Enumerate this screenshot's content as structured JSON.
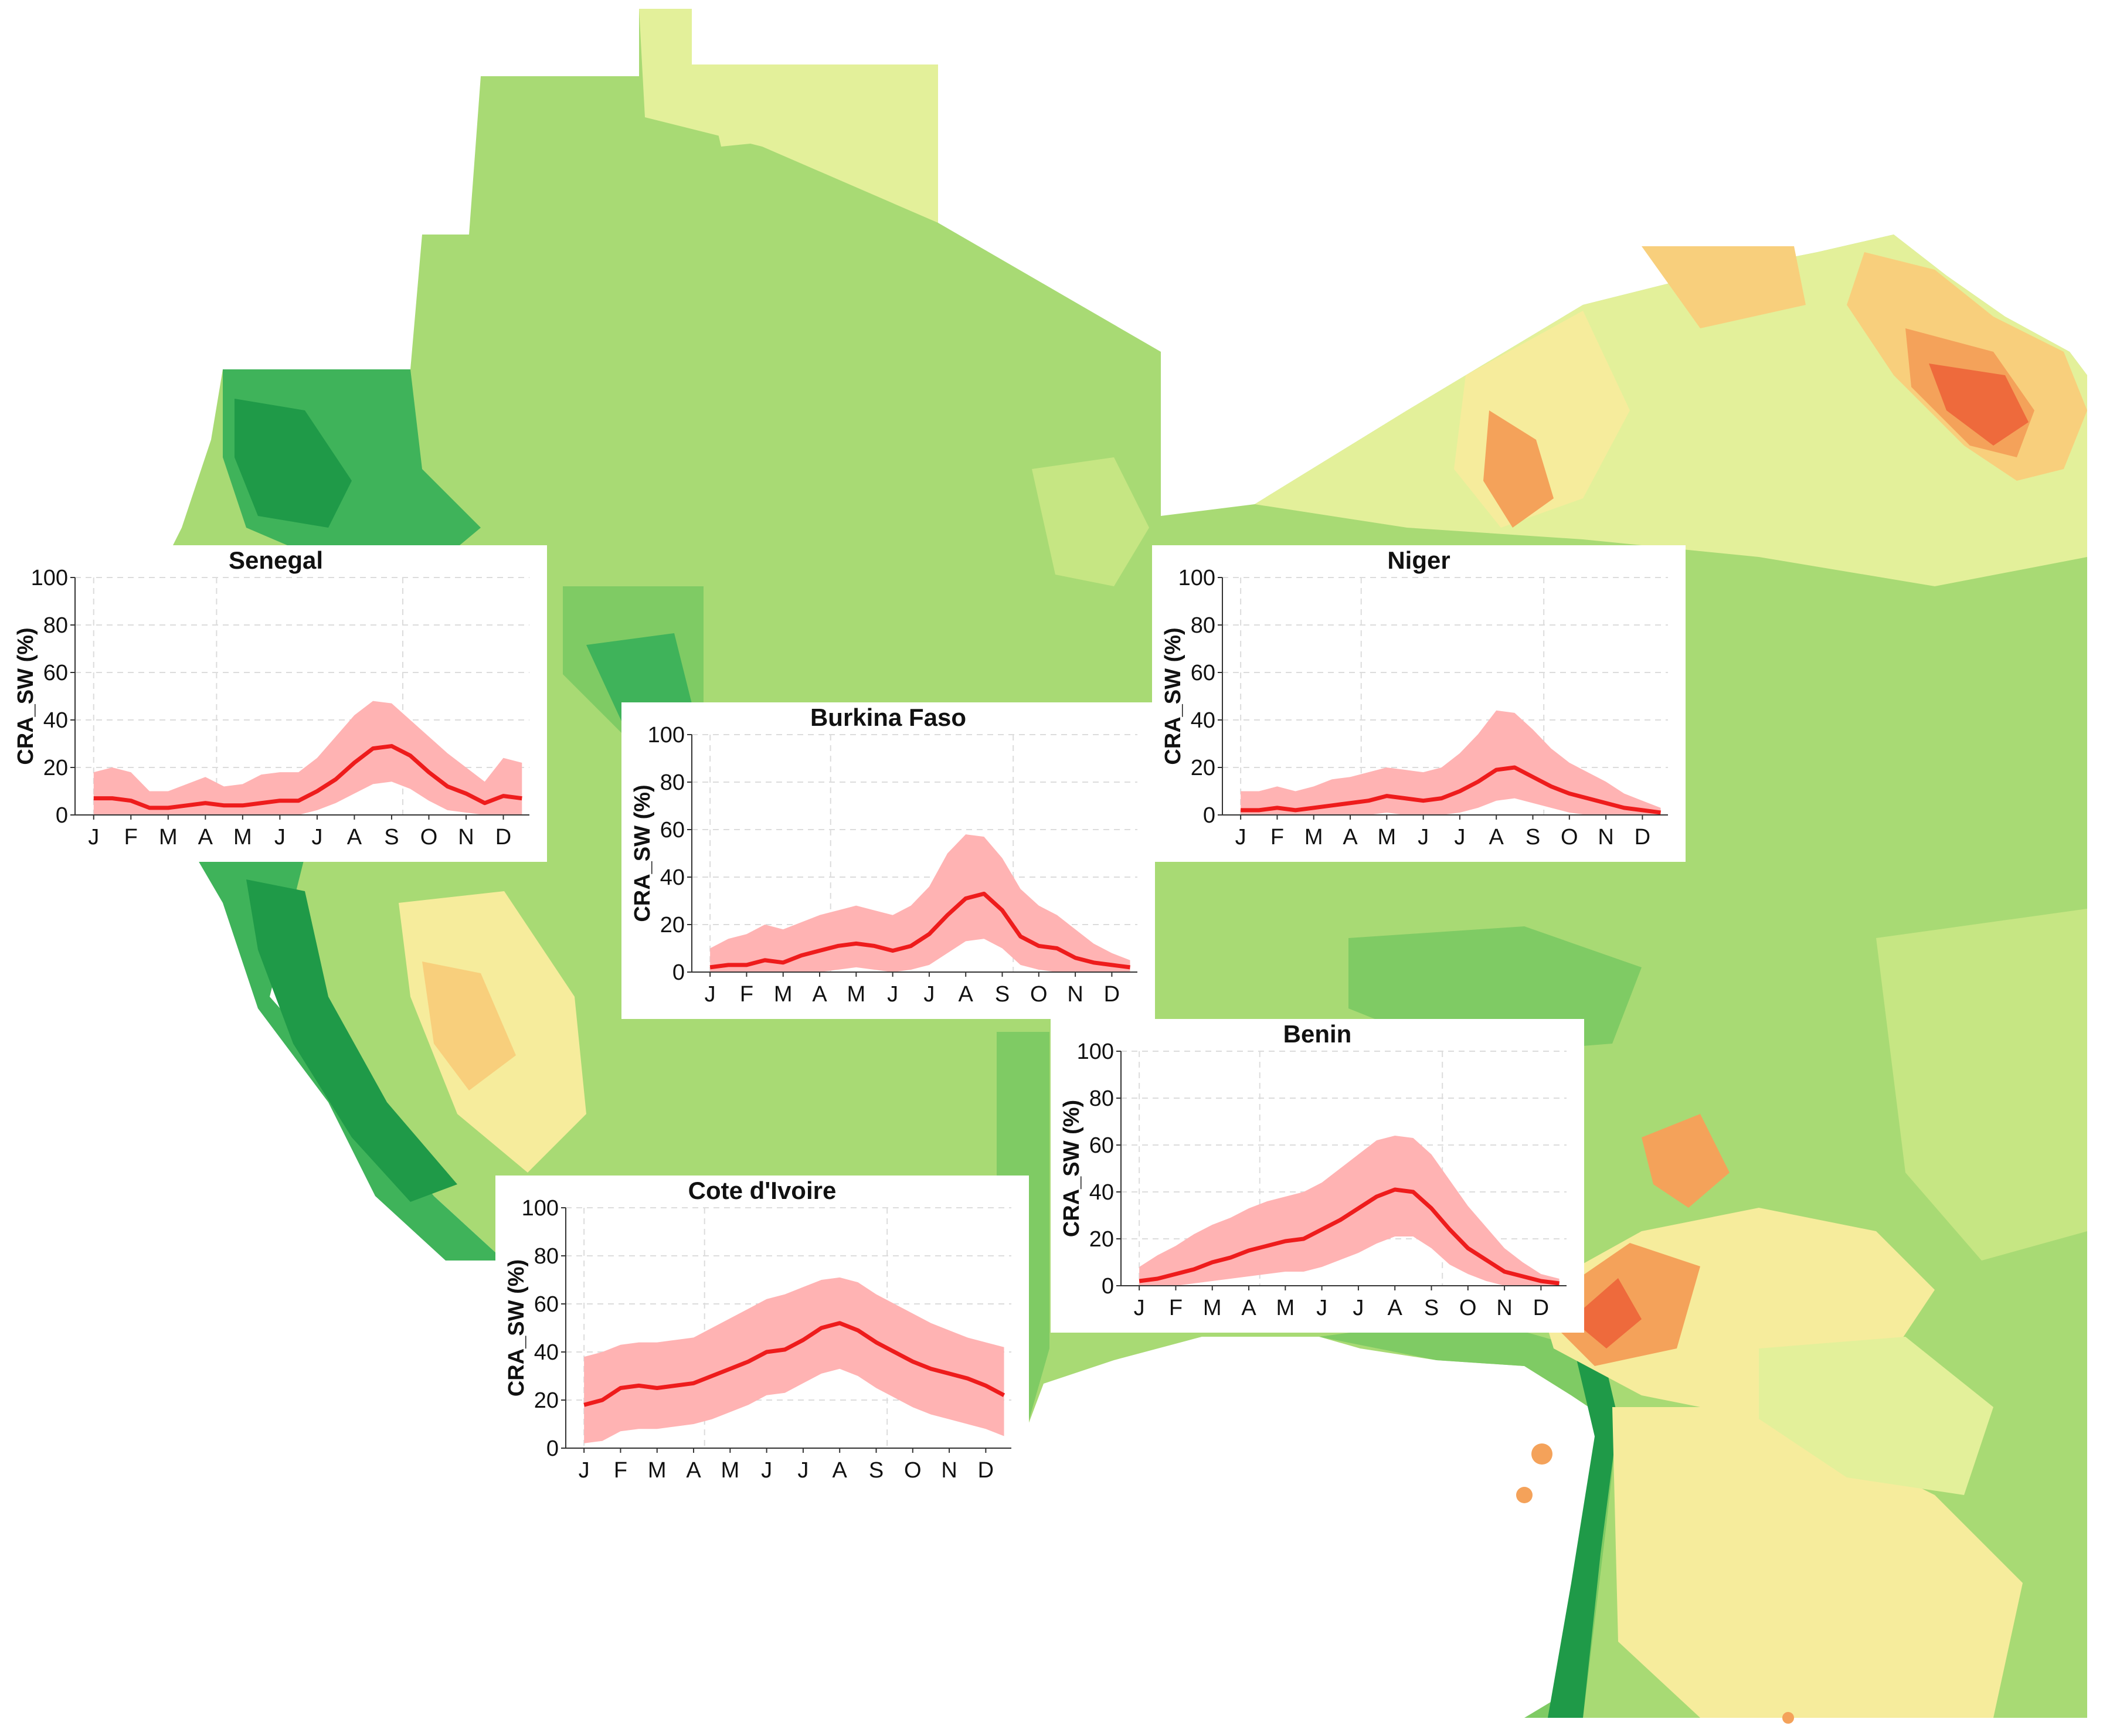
{
  "figure": {
    "map_palette": [
      "#1f9a48",
      "#3fb35a",
      "#7fcb64",
      "#a8da74",
      "#c6e683",
      "#e3f09a",
      "#f6ec9c",
      "#f8cf7c",
      "#f4a25a",
      "#ee6a3c",
      "#e5322a"
    ]
  },
  "chart_data": [
    {
      "type": "area",
      "title": "Senegal",
      "ylabel": "CRA_SW (%)",
      "ylim": [
        0,
        100
      ],
      "yticks": [
        0,
        20,
        40,
        60,
        80,
        100
      ],
      "month_labels": [
        "J",
        "F",
        "M",
        "A",
        "M",
        "J",
        "J",
        "A",
        "S",
        "O",
        "N",
        "D"
      ],
      "mean_color": "#ee1c1c",
      "band_color": "#ffb3b3",
      "x": [
        0,
        0.5,
        1,
        1.5,
        2,
        2.5,
        3,
        3.5,
        4,
        4.5,
        5,
        5.5,
        6,
        6.5,
        7,
        7.5,
        8,
        8.5,
        9,
        9.5,
        10,
        10.5,
        11,
        11.5
      ],
      "mean": [
        7,
        7,
        6,
        3,
        3,
        4,
        5,
        4,
        4,
        5,
        6,
        6,
        10,
        15,
        22,
        28,
        29,
        25,
        18,
        12,
        9,
        5,
        8,
        7
      ],
      "upper": [
        18,
        20,
        18,
        10,
        10,
        13,
        16,
        12,
        13,
        17,
        18,
        18,
        24,
        33,
        42,
        48,
        47,
        40,
        33,
        26,
        20,
        14,
        24,
        22
      ],
      "lower": [
        0,
        0,
        0,
        0,
        0,
        0,
        0,
        0,
        0,
        0,
        0,
        0,
        2,
        5,
        9,
        13,
        14,
        11,
        6,
        2,
        1,
        0,
        0,
        0
      ]
    },
    {
      "type": "area",
      "title": "Niger",
      "ylabel": "CRA_SW (%)",
      "ylim": [
        0,
        100
      ],
      "yticks": [
        0,
        20,
        40,
        60,
        80,
        100
      ],
      "month_labels": [
        "J",
        "F",
        "M",
        "A",
        "M",
        "J",
        "J",
        "A",
        "S",
        "O",
        "N",
        "D"
      ],
      "mean_color": "#ee1c1c",
      "band_color": "#ffb3b3",
      "x": [
        0,
        0.5,
        1,
        1.5,
        2,
        2.5,
        3,
        3.5,
        4,
        4.5,
        5,
        5.5,
        6,
        6.5,
        7,
        7.5,
        8,
        8.5,
        9,
        9.5,
        10,
        10.5,
        11,
        11.5
      ],
      "mean": [
        2,
        2,
        3,
        2,
        3,
        4,
        5,
        6,
        8,
        7,
        6,
        7,
        10,
        14,
        19,
        20,
        16,
        12,
        9,
        7,
        5,
        3,
        2,
        1
      ],
      "upper": [
        10,
        10,
        12,
        10,
        12,
        15,
        16,
        18,
        20,
        19,
        18,
        20,
        26,
        34,
        44,
        43,
        36,
        28,
        22,
        18,
        14,
        9,
        6,
        3
      ],
      "lower": [
        0,
        0,
        0,
        0,
        0,
        0,
        0,
        0,
        1,
        0,
        0,
        0,
        1,
        3,
        6,
        7,
        5,
        3,
        1,
        0,
        0,
        0,
        0,
        0
      ]
    },
    {
      "type": "area",
      "title": "Burkina Faso",
      "ylabel": "CRA_SW (%)",
      "ylim": [
        0,
        100
      ],
      "yticks": [
        0,
        20,
        40,
        60,
        80,
        100
      ],
      "month_labels": [
        "J",
        "F",
        "M",
        "A",
        "M",
        "J",
        "J",
        "A",
        "S",
        "O",
        "N",
        "D"
      ],
      "mean_color": "#ee1c1c",
      "band_color": "#ffb3b3",
      "x": [
        0,
        0.5,
        1,
        1.5,
        2,
        2.5,
        3,
        3.5,
        4,
        4.5,
        5,
        5.5,
        6,
        6.5,
        7,
        7.5,
        8,
        8.5,
        9,
        9.5,
        10,
        10.5,
        11,
        11.5
      ],
      "mean": [
        2,
        3,
        3,
        5,
        4,
        7,
        9,
        11,
        12,
        11,
        9,
        11,
        16,
        24,
        31,
        33,
        26,
        15,
        11,
        10,
        6,
        4,
        3,
        2
      ],
      "upper": [
        10,
        14,
        16,
        20,
        18,
        21,
        24,
        26,
        28,
        26,
        24,
        28,
        36,
        50,
        58,
        57,
        48,
        35,
        28,
        24,
        18,
        12,
        8,
        5
      ],
      "lower": [
        0,
        0,
        0,
        0,
        0,
        0,
        0,
        1,
        2,
        1,
        0,
        1,
        3,
        8,
        13,
        14,
        10,
        3,
        1,
        0,
        0,
        0,
        0,
        0
      ]
    },
    {
      "type": "area",
      "title": "Benin",
      "ylabel": "CRA_SW (%)",
      "ylim": [
        0,
        100
      ],
      "yticks": [
        0,
        20,
        40,
        60,
        80,
        100
      ],
      "month_labels": [
        "J",
        "F",
        "M",
        "A",
        "M",
        "J",
        "J",
        "A",
        "S",
        "O",
        "N",
        "D"
      ],
      "mean_color": "#ee1c1c",
      "band_color": "#ffb3b3",
      "x": [
        0,
        0.5,
        1,
        1.5,
        2,
        2.5,
        3,
        3.5,
        4,
        4.5,
        5,
        5.5,
        6,
        6.5,
        7,
        7.5,
        8,
        8.5,
        9,
        9.5,
        10,
        10.5,
        11,
        11.5
      ],
      "mean": [
        2,
        3,
        5,
        7,
        10,
        12,
        15,
        17,
        19,
        20,
        24,
        28,
        33,
        38,
        41,
        40,
        33,
        24,
        16,
        11,
        6,
        4,
        2,
        1
      ],
      "upper": [
        8,
        13,
        17,
        22,
        26,
        29,
        33,
        36,
        38,
        40,
        44,
        50,
        56,
        62,
        64,
        63,
        56,
        45,
        34,
        25,
        16,
        10,
        5,
        3
      ],
      "lower": [
        0,
        0,
        0,
        1,
        2,
        3,
        4,
        5,
        6,
        6,
        8,
        11,
        14,
        18,
        21,
        21,
        16,
        9,
        5,
        2,
        0,
        0,
        0,
        0
      ]
    },
    {
      "type": "area",
      "title": "Cote d'Ivoire",
      "ylabel": "CRA_SW (%)",
      "ylim": [
        0,
        100
      ],
      "yticks": [
        0,
        20,
        40,
        60,
        80,
        100
      ],
      "month_labels": [
        "J",
        "F",
        "M",
        "A",
        "M",
        "J",
        "J",
        "A",
        "S",
        "O",
        "N",
        "D"
      ],
      "mean_color": "#ee1c1c",
      "band_color": "#ffb3b3",
      "x": [
        0,
        0.5,
        1,
        1.5,
        2,
        2.5,
        3,
        3.5,
        4,
        4.5,
        5,
        5.5,
        6,
        6.5,
        7,
        7.5,
        8,
        8.5,
        9,
        9.5,
        10,
        10.5,
        11,
        11.5
      ],
      "mean": [
        18,
        20,
        25,
        26,
        25,
        26,
        27,
        30,
        33,
        36,
        40,
        41,
        45,
        50,
        52,
        49,
        44,
        40,
        36,
        33,
        31,
        29,
        26,
        22
      ],
      "upper": [
        38,
        40,
        43,
        44,
        44,
        45,
        46,
        50,
        54,
        58,
        62,
        64,
        67,
        70,
        71,
        69,
        64,
        60,
        56,
        52,
        49,
        46,
        44,
        42
      ],
      "lower": [
        2,
        3,
        7,
        8,
        8,
        9,
        10,
        12,
        15,
        18,
        22,
        23,
        27,
        31,
        33,
        30,
        25,
        21,
        17,
        14,
        12,
        10,
        8,
        5
      ]
    }
  ]
}
